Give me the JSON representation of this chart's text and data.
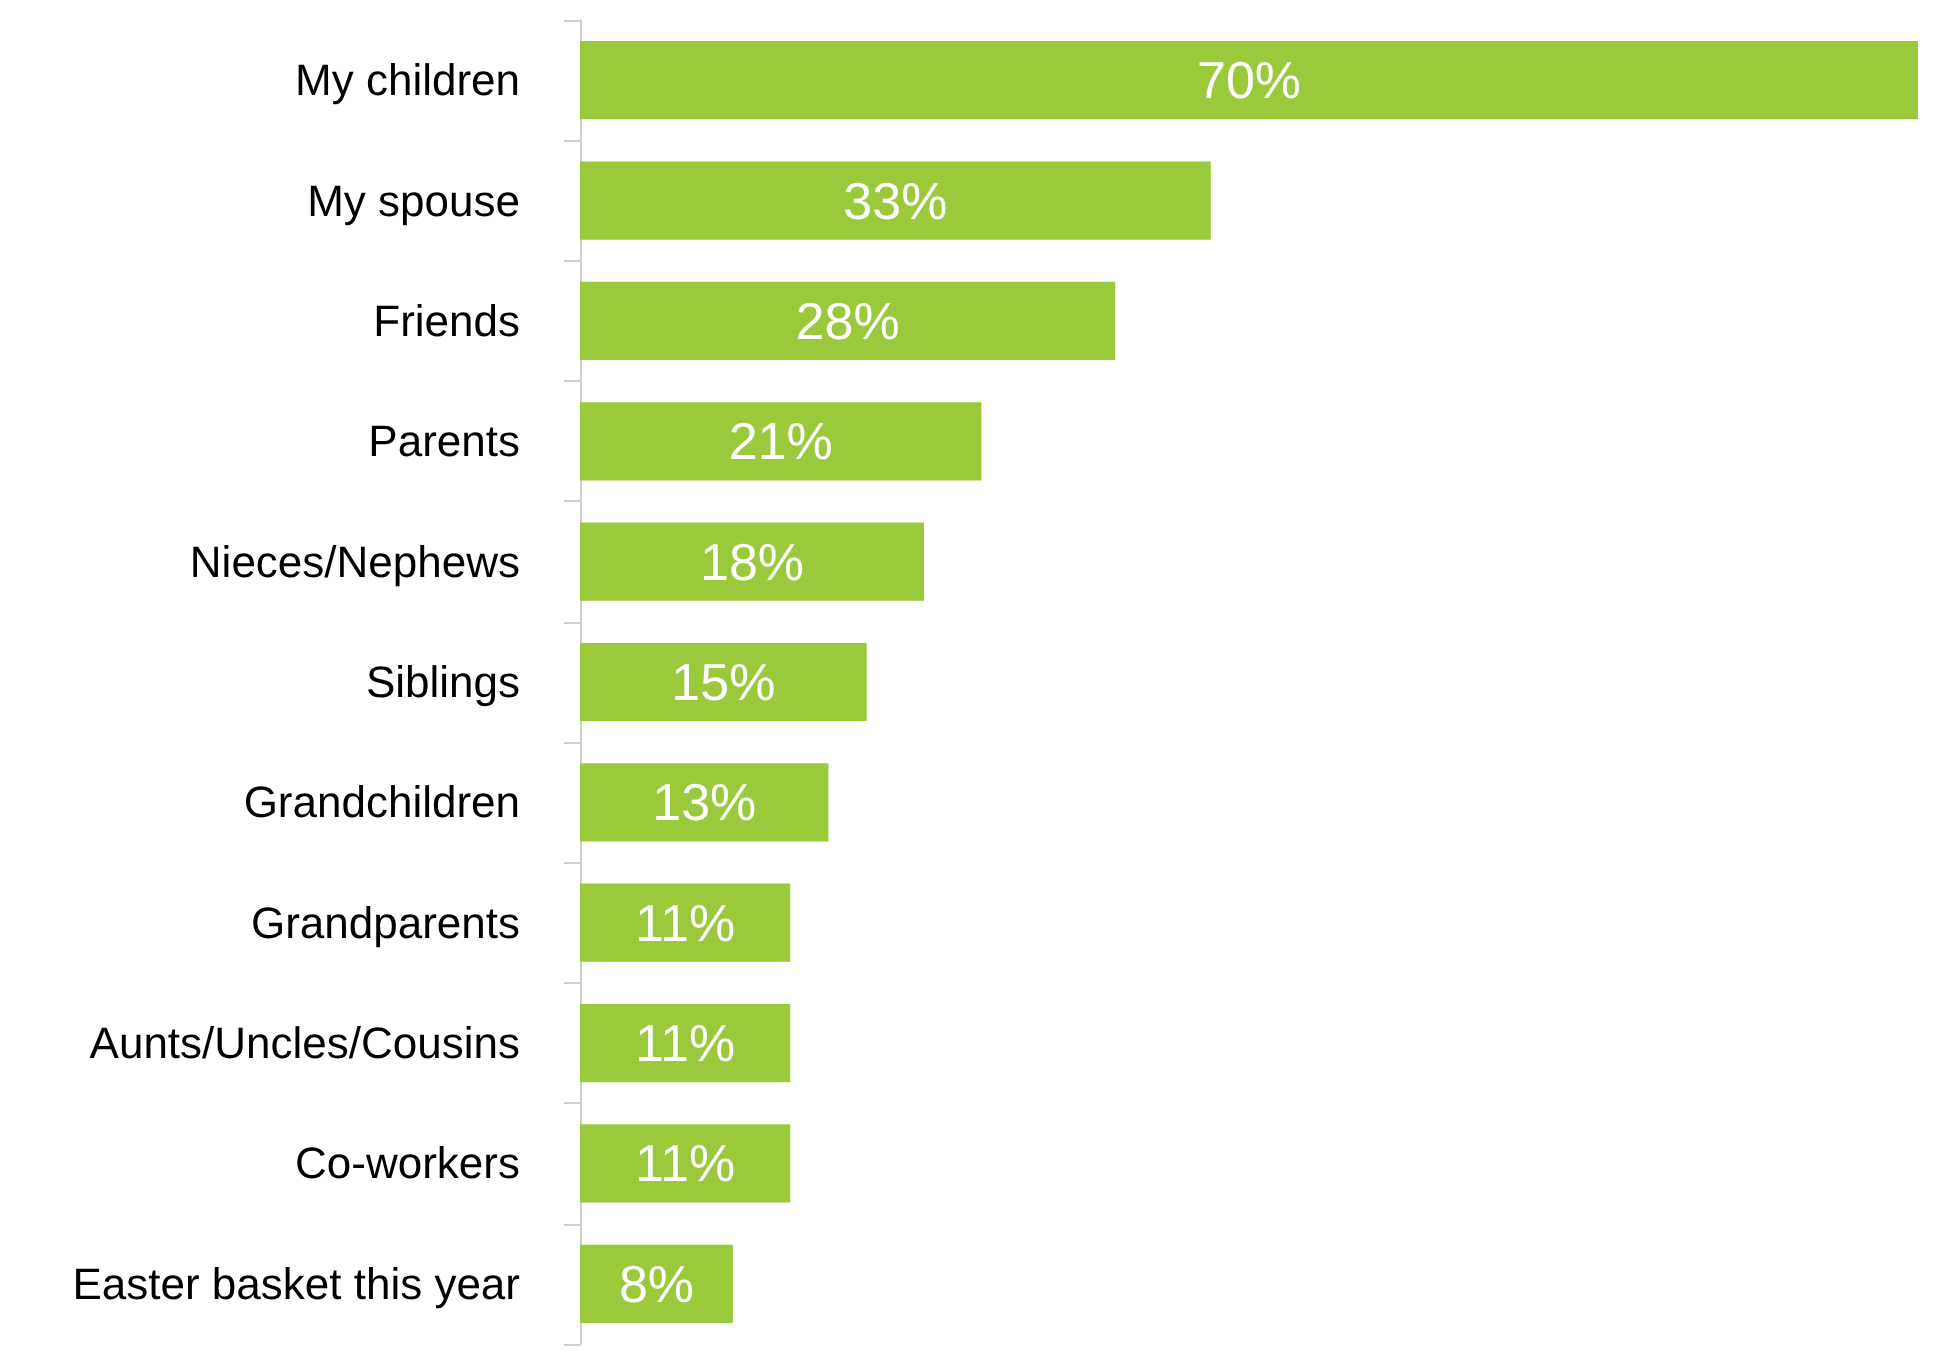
{
  "chart_data": {
    "type": "bar",
    "orientation": "horizontal",
    "categories": [
      "My children",
      "My spouse",
      "Friends",
      "Parents",
      "Nieces/Nephews",
      "Siblings",
      "Grandchildren",
      "Grandparents",
      "Aunts/Uncles/Cousins",
      "Co-workers",
      "Easter basket this year"
    ],
    "values": [
      70,
      33,
      28,
      21,
      18,
      15,
      13,
      11,
      11,
      11,
      8
    ],
    "value_labels": [
      "70%",
      "33%",
      "28%",
      "21%",
      "18%",
      "15%",
      "13%",
      "11%",
      "11%",
      "11%",
      "8%"
    ],
    "color": "#9aca3c"
  }
}
